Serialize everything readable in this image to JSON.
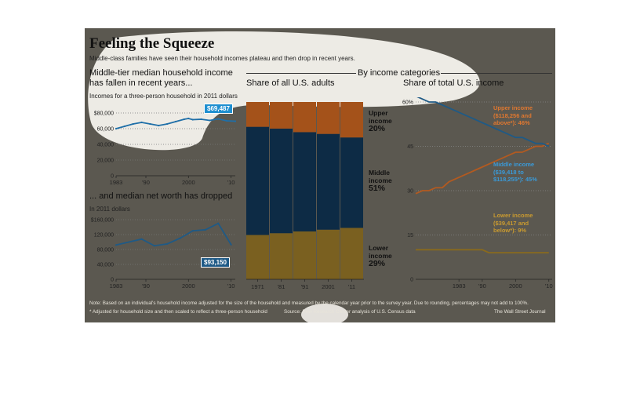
{
  "figure": {
    "title": "Feeling the Squeeze",
    "subtitle": "Middle-class families have seen their household incomes plateau and then drop in recent years.",
    "panel1_heading": "Middle-tier median household income has fallen in recent years...",
    "panel1_note": "Incomes for a three-person household in 2011 dollars",
    "panel1_badge": "$69,487",
    "panel2_heading": "... and median net worth has dropped",
    "panel2_note": "In 2011 dollars",
    "panel2_badge": "$93,150",
    "by_income": "By income categories",
    "panel3_heading": "Share of all U.S. adults",
    "panel4_heading": "Share of total U.S. income",
    "band_upper_label": "Upper income",
    "band_upper_value": "20%",
    "band_middle_label": "Middle income",
    "band_middle_value": "51%",
    "band_lower_label": "Lower income",
    "band_lower_value": "29%",
    "callout_upper": "Upper income ($118,256 and above*): 46%",
    "callout_middle": "Middle income ($39,418 to $118,255*): 45%",
    "callout_lower": "Lower income ($39,417 and below*): 9%",
    "note": "Note: Based on an individual's household income adjusted for the size of the household and measured by the calendar year prior to the survey year. Due to rounding, percentages may not add to 100%.",
    "footnote": "* Adjusted for household size and then scaled to reflect a three-person household",
    "source": "Source: Pew Research Center analysis of U.S. Census data",
    "credit": "The Wall Street Journal"
  },
  "colors": {
    "background": "#5b5850",
    "blue": "#1f5a86",
    "navy": "#0d2b45",
    "orange": "#a4521a",
    "olive": "#7a6020",
    "gold": "#e8a630"
  },
  "chart_data": [
    {
      "type": "line",
      "title": "Middle-tier median household income has fallen in recent years...",
      "ylabel": "Incomes for a three-person household in 2011 dollars",
      "x": [
        1983,
        1985,
        1987,
        1989,
        1991,
        1993,
        1995,
        1997,
        1999,
        2000,
        2001,
        2003,
        2005,
        2007,
        2009,
        2011
      ],
      "values": [
        60000,
        63000,
        66000,
        68000,
        66000,
        64000,
        66000,
        69000,
        72000,
        73000,
        71500,
        72000,
        70500,
        72500,
        70000,
        69487
      ],
      "xticks": [
        "1983",
        "'90",
        "2000",
        "'10"
      ],
      "yticks": [
        "0",
        "20,000",
        "40,000",
        "60,000",
        "$80,000"
      ],
      "ylim": [
        0,
        80000
      ],
      "annotation": "$69,487"
    },
    {
      "type": "line",
      "title": "... and median net worth has dropped",
      "ylabel": "In 2011 dollars",
      "x": [
        1983,
        1989,
        1992,
        1995,
        1998,
        2001,
        2004,
        2007,
        2010
      ],
      "values": [
        92000,
        108000,
        90000,
        95000,
        110000,
        130000,
        133000,
        150000,
        93150
      ],
      "xticks": [
        "1983",
        "'90",
        "2000",
        "'10"
      ],
      "yticks": [
        "0",
        "40,000",
        "80,000",
        "120,000",
        "$160,000"
      ],
      "ylim": [
        0,
        160000
      ],
      "annotation": "$93,150"
    },
    {
      "type": "bar",
      "title": "Share of all U.S. adults",
      "categories": [
        "1971",
        "'81",
        "'91",
        "2001",
        "'11"
      ],
      "series": [
        {
          "name": "Lower income",
          "values": [
            25,
            26,
            27,
            28,
            29
          ]
        },
        {
          "name": "Middle income",
          "values": [
            61,
            59,
            56,
            54,
            51
          ]
        },
        {
          "name": "Upper income",
          "values": [
            14,
            15,
            17,
            18,
            20
          ]
        }
      ],
      "ylim": [
        0,
        100
      ]
    },
    {
      "type": "line",
      "title": "Share of total U.S. income",
      "x": [
        1970,
        1972,
        1974,
        1976,
        1978,
        1980,
        1982,
        1984,
        1986,
        1988,
        1990,
        1992,
        1994,
        1996,
        1998,
        2000,
        2002,
        2004,
        2006,
        2008,
        2010
      ],
      "series": [
        {
          "name": "Upper income",
          "values": [
            29,
            30,
            30,
            31,
            31,
            33,
            34,
            35,
            36,
            37,
            38,
            39,
            40,
            41,
            42,
            43,
            43,
            44,
            45,
            45,
            46
          ]
        },
        {
          "name": "Middle income",
          "values": [
            62,
            61,
            60,
            60,
            59,
            58,
            57,
            56,
            55,
            54,
            53,
            52,
            51,
            50,
            49,
            48,
            48,
            47,
            46,
            46,
            45
          ]
        },
        {
          "name": "Lower income",
          "values": [
            10,
            10,
            10,
            10,
            10,
            10,
            10,
            10,
            10,
            10,
            10,
            9,
            9,
            9,
            9,
            9,
            9,
            9,
            9,
            9,
            9
          ]
        }
      ],
      "xticks": [
        "1983",
        "'90",
        "2000",
        "'10"
      ],
      "yticks": [
        "0",
        "15",
        "30",
        "45",
        "60%"
      ],
      "ylim": [
        0,
        60
      ]
    }
  ]
}
